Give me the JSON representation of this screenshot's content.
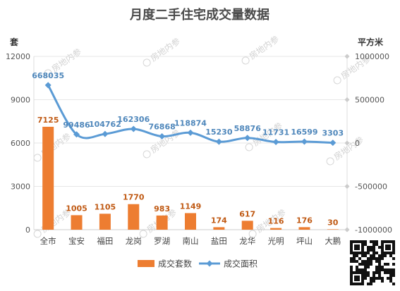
{
  "chart_data": {
    "type": "bar+line",
    "title": "月度二手住宅成交量数据",
    "left_unit": "套",
    "right_unit": "平方米",
    "categories": [
      "全市",
      "宝安",
      "福田",
      "龙岗",
      "罗湖",
      "南山",
      "盐田",
      "龙华",
      "光明",
      "坪山",
      "大鹏"
    ],
    "series": [
      {
        "name": "成交套数",
        "type": "bar",
        "axis": "left",
        "color": "#ed7d31",
        "values": [
          7125,
          1005,
          1105,
          1770,
          983,
          1149,
          174,
          617,
          116,
          176,
          30
        ]
      },
      {
        "name": "成交面积",
        "type": "line",
        "axis": "right",
        "color": "#5b9bd5",
        "values": [
          668035,
          99486,
          104762,
          162306,
          76868,
          118874,
          15230,
          58876,
          11731,
          16599,
          3303
        ]
      }
    ],
    "left_axis": {
      "min": 0,
      "max": 12000,
      "ticks": [
        0,
        3000,
        6000,
        9000,
        12000
      ]
    },
    "right_axis": {
      "min": -1000000,
      "max": 1000000,
      "ticks": [
        -1000000,
        -500000,
        0,
        500000,
        1000000
      ]
    },
    "legend_position": "bottom",
    "grid": true
  },
  "watermark": "房地内参"
}
